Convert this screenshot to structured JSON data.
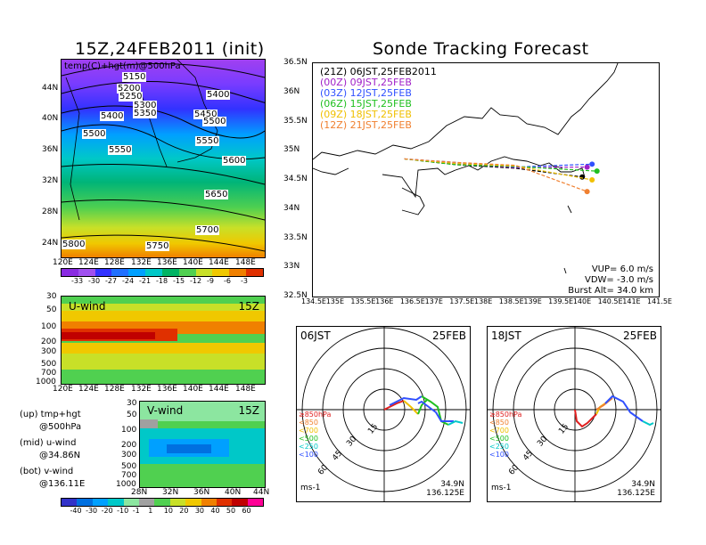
{
  "left": {
    "title": "15Z,24FEB2011 (init)",
    "map_label": "temp(C)+hgt(m)@500hPa",
    "map_lat_ticks": [
      "44N",
      "40N",
      "36N",
      "32N",
      "28N",
      "24N"
    ],
    "map_lon_ticks": [
      "120E",
      "124E",
      "128E",
      "132E",
      "136E",
      "140E",
      "144E",
      "148E"
    ],
    "contours": [
      "5150",
      "5200",
      "5250",
      "5300",
      "5350",
      "5400",
      "5400",
      "5450",
      "5500",
      "5500",
      "5550",
      "5550",
      "5600",
      "5600",
      "5650",
      "5700",
      "5750",
      "5800"
    ],
    "temp_colorbar": [
      "-33",
      "-30",
      "-27",
      "-24",
      "-21",
      "-18",
      "-15",
      "-12",
      "-9",
      "-6",
      "-3"
    ],
    "temp_colors": [
      "#8a2be2",
      "#a050f0",
      "#3232ff",
      "#2070ff",
      "#00a0ff",
      "#00c8c8",
      "#00b464",
      "#50d050",
      "#c8e028",
      "#f0c800",
      "#f08000",
      "#e03000"
    ],
    "uwind_label": "U-wind",
    "uwind_time": "15Z",
    "uwind_p_ticks": [
      "30",
      "50",
      "100",
      "200",
      "300",
      "500",
      "700",
      "1000"
    ],
    "uwind_lon_ticks": [
      "120E",
      "124E",
      "128E",
      "132E",
      "136E",
      "140E",
      "144E",
      "148E"
    ],
    "vwind_label": "V-wind",
    "vwind_time": "15Z",
    "vwind_p_ticks": [
      "30",
      "50",
      "100",
      "200",
      "300",
      "500",
      "700",
      "1000"
    ],
    "vwind_lat_ticks": [
      "28N",
      "32N",
      "36N",
      "40N",
      "44N"
    ],
    "legend_lines": [
      "(up) tmp+hgt",
      "@500hPa",
      "(mid) u-wind",
      "@34.86N",
      "(bot) v-wind",
      "@136.11E"
    ],
    "wind_colorbar": [
      "-40",
      "-30",
      "-20",
      "-10",
      "-1",
      "1",
      "10",
      "20",
      "30",
      "40",
      "50",
      "60"
    ],
    "wind_colors": [
      "#3232c8",
      "#0070e0",
      "#00a0ff",
      "#00c8c8",
      "#8ce6a0",
      "#a0a0a0",
      "#50d050",
      "#c8e028",
      "#f0c800",
      "#f08000",
      "#e03000",
      "#c00000",
      "#ff0096"
    ]
  },
  "right": {
    "title": "Sonde Tracking Forecast",
    "lat_ticks": [
      "36.5N",
      "36N",
      "35.5N",
      "35N",
      "34.5N",
      "34N",
      "33.5N",
      "33N",
      "32.5N"
    ],
    "lon_ticks": [
      "134.5E",
      "135E",
      "135.5E",
      "136E",
      "136.5E",
      "137E",
      "137.5E",
      "138E",
      "138.5E",
      "139E",
      "139.5E",
      "140E",
      "140.5E",
      "141E",
      "141.5E"
    ],
    "launches": [
      {
        "label": "(21Z)  06JST,25FEB2011",
        "color": "#000000"
      },
      {
        "label": "(00Z)  09JST,25FEB",
        "color": "#a020c8"
      },
      {
        "label": "(03Z)  12JST,25FEB",
        "color": "#3050ff"
      },
      {
        "label": "(06Z)  15JST,25FEB",
        "color": "#20c020"
      },
      {
        "label": "(09Z)  18JST,25FEB",
        "color": "#f0c000"
      },
      {
        "label": "(12Z)  21JST,25FEB",
        "color": "#f08030"
      }
    ],
    "params": [
      "VUP=  6.0  m/s",
      "VDW= -3.0  m/s",
      "Burst Alt=  34.0  km"
    ],
    "hodo1": {
      "time": "06JST",
      "date": "25FEB",
      "rings": [
        "15",
        "30",
        "45",
        "60"
      ],
      "unit": "ms-1",
      "loc1": "34.9N",
      "loc2": "136.125E"
    },
    "hodo2": {
      "time": "18JST",
      "date": "25FEB",
      "rings": [
        "15",
        "30",
        "45",
        "60"
      ],
      "unit": "ms-1",
      "loc1": "34.9N",
      "loc2": "136.125E"
    },
    "hodo_legend": [
      {
        "label": "≥850hPa",
        "color": "#e02020"
      },
      {
        "label": "<850",
        "color": "#f08030"
      },
      {
        "label": "<700",
        "color": "#f0c000"
      },
      {
        "label": "<500",
        "color": "#20c020"
      },
      {
        "label": "<250",
        "color": "#00c8c8"
      },
      {
        "label": "<100",
        "color": "#3050ff"
      }
    ]
  }
}
